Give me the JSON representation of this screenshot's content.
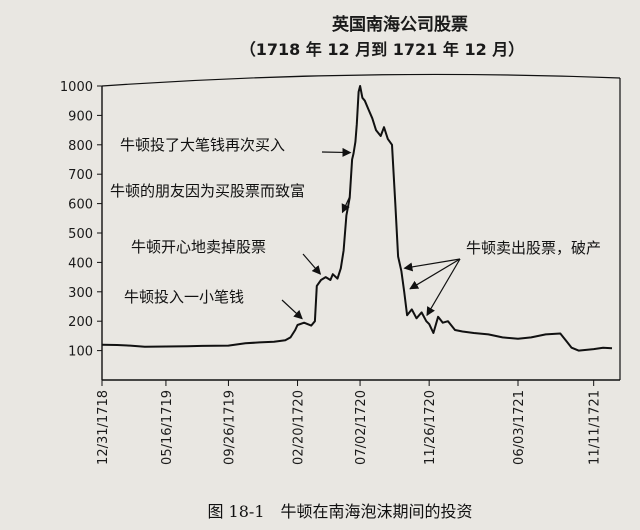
{
  "chart_data": {
    "type": "line",
    "title": "英国南海公司股票",
    "subtitle": "（1718 年 12 月到 1721 年 12 月）",
    "xlabel": "",
    "ylabel": "",
    "ylim": [
      0,
      1000
    ],
    "yticks": [
      100,
      200,
      300,
      400,
      500,
      600,
      700,
      800,
      900,
      1000
    ],
    "x_tick_labels": [
      "12/31/1718",
      "05/16/1719",
      "09/26/1719",
      "02/20/1720",
      "07/02/1720",
      "11/26/1720",
      "06/03/1721",
      "11/11/1721"
    ],
    "series": [
      {
        "name": "",
        "points": [
          [
            "12/31/1718",
            120
          ],
          [
            "02/01/1719",
            119
          ],
          [
            "03/01/1719",
            117
          ],
          [
            "04/01/1719",
            113
          ],
          [
            "05/16/1719",
            114
          ],
          [
            "07/01/1719",
            115
          ],
          [
            "08/01/1719",
            116
          ],
          [
            "09/26/1719",
            117
          ],
          [
            "11/01/1719",
            125
          ],
          [
            "12/01/1719",
            128
          ],
          [
            "01/01/1720",
            130
          ],
          [
            "01/25/1720",
            135
          ],
          [
            "02/05/1720",
            145
          ],
          [
            "02/15/1720",
            170
          ],
          [
            "02/20/1720",
            187
          ],
          [
            "03/05/1720",
            195
          ],
          [
            "03/20/1720",
            185
          ],
          [
            "03/28/1720",
            200
          ],
          [
            "04/01/1720",
            320
          ],
          [
            "04/10/1720",
            340
          ],
          [
            "04/20/1720",
            350
          ],
          [
            "04/30/1720",
            340
          ],
          [
            "05/05/1720",
            360
          ],
          [
            "05/15/1720",
            345
          ],
          [
            "05/22/1720",
            380
          ],
          [
            "05/28/1720",
            440
          ],
          [
            "06/03/1720",
            560
          ],
          [
            "06/10/1720",
            620
          ],
          [
            "06/15/1720",
            750
          ],
          [
            "06/18/1720",
            770
          ],
          [
            "06/22/1720",
            810
          ],
          [
            "06/25/1720",
            870
          ],
          [
            "06/29/1720",
            980
          ],
          [
            "07/02/1720",
            1000
          ],
          [
            "07/07/1720",
            960
          ],
          [
            "07/12/1720",
            950
          ],
          [
            "07/20/1720",
            920
          ],
          [
            "07/28/1720",
            890
          ],
          [
            "08/05/1720",
            850
          ],
          [
            "08/15/1720",
            830
          ],
          [
            "08/22/1720",
            860
          ],
          [
            "08/30/1720",
            820
          ],
          [
            "09/08/1720",
            800
          ],
          [
            "09/15/1720",
            600
          ],
          [
            "09/21/1720",
            420
          ],
          [
            "09/28/1720",
            370
          ],
          [
            "10/04/1720",
            300
          ],
          [
            "10/10/1720",
            220
          ],
          [
            "10/20/1720",
            240
          ],
          [
            "10/30/1720",
            210
          ],
          [
            "11/10/1720",
            230
          ],
          [
            "11/20/1720",
            200
          ],
          [
            "11/26/1720",
            190
          ],
          [
            "12/05/1720",
            160
          ],
          [
            "12/15/1720",
            215
          ],
          [
            "12/25/1720",
            195
          ],
          [
            "01/05/1721",
            200
          ],
          [
            "01/20/1721",
            170
          ],
          [
            "02/05/1721",
            165
          ],
          [
            "03/01/1721",
            160
          ],
          [
            "04/01/1721",
            155
          ],
          [
            "05/01/1721",
            145
          ],
          [
            "06/03/1721",
            140
          ],
          [
            "07/01/1721",
            145
          ],
          [
            "08/01/1721",
            155
          ],
          [
            "09/01/1721",
            158
          ],
          [
            "09/15/1721",
            130
          ],
          [
            "09/25/1721",
            110
          ],
          [
            "10/10/1721",
            100
          ],
          [
            "11/11/1721",
            105
          ],
          [
            "12/01/1721",
            110
          ],
          [
            "12/20/1721",
            108
          ]
        ]
      }
    ],
    "annotations": [
      {
        "text": "牛顿投了大笔钱再次买入",
        "point": [
          "06/18/1720",
          760
        ]
      },
      {
        "text": "牛顿的朋友因为买股票而致富",
        "point": [
          "06/03/1720",
          560
        ]
      },
      {
        "text": "牛顿开心地卖掉股票",
        "point": [
          "04/15/1720",
          350
        ]
      },
      {
        "text": "牛顿投入一小笔钱",
        "point": [
          "03/05/1720",
          195
        ]
      },
      {
        "text": "牛顿卖出股票，破产",
        "points": [
          [
            "09/28/1720",
            370
          ],
          [
            "10/10/1720",
            300
          ],
          [
            "11/15/1720",
            210
          ]
        ]
      }
    ],
    "grid": false,
    "legend": "none"
  },
  "caption": "图 18-1　牛顿在南海泡沫期间的投资"
}
